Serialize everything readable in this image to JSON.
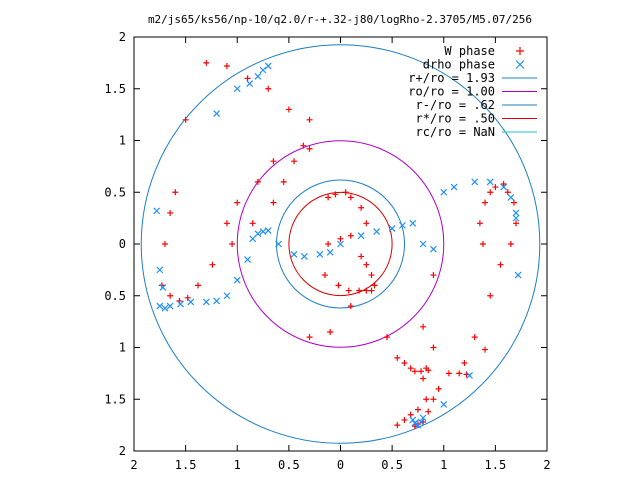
{
  "chart_data": {
    "type": "scatter",
    "title": "m2/js65/ks56/np-10/q2.0/r-+.32-j80/logRho-2.3705/M5.07/256",
    "xlim": [
      -2,
      2
    ],
    "ylim": [
      -2,
      2
    ],
    "x_tick_labels": [
      "2",
      "1.5",
      "1",
      "0.5",
      "0",
      "0.5",
      "1",
      "1.5",
      "2"
    ],
    "y_tick_labels": [
      "2",
      "1.5",
      "1",
      "0.5",
      "0",
      "0.5",
      "1",
      "1.5",
      "2"
    ],
    "x_ticks": [
      -2,
      -1.5,
      -1,
      -0.5,
      0,
      0.5,
      1,
      1.5,
      2
    ],
    "y_ticks": [
      2,
      1.5,
      1,
      0.5,
      0,
      -0.5,
      -1,
      -1.5,
      -2
    ],
    "grid": false,
    "legend_position": "top-right",
    "colors": {
      "w_phase": "#ff0000",
      "drho_phase": "#1e90ff",
      "r_plus": "#1e7fc6",
      "ro": "#b000c8",
      "r_minus": "#1e7fc6",
      "r_star": "#d40000",
      "rc": "#20c0d0"
    },
    "series": [
      {
        "name": "W phase",
        "marker": "+",
        "x": [
          -1.73,
          -1.65,
          -1.56,
          -1.48,
          -1.38,
          -1.24,
          -1.05,
          -0.85,
          -0.65,
          -0.55,
          -0.45,
          -0.36,
          -0.3,
          -0.3,
          -0.5,
          -0.7,
          -0.9,
          -1.1,
          -1.3,
          -1.5,
          -1.6,
          -1.65,
          -1.7,
          -1.1,
          -1.0,
          -0.8,
          -0.65,
          -0.12,
          -0.05,
          0.05,
          0.1,
          0.2,
          0.25,
          0.1,
          0.0,
          -0.12,
          -0.15,
          -0.02,
          0.08,
          0.18,
          0.25,
          0.3,
          0.1,
          -0.1,
          -0.3,
          0.2,
          0.25,
          0.3,
          0.33,
          0.45,
          0.55,
          0.62,
          0.68,
          0.72,
          0.78,
          0.83,
          0.85,
          0.9,
          0.8,
          0.8,
          0.55,
          0.62,
          0.68,
          0.75,
          0.83,
          1.05,
          1.2,
          1.4,
          1.38,
          1.35,
          1.4,
          1.45,
          1.5,
          1.58,
          1.62,
          1.68,
          1.7,
          1.65,
          1.55,
          1.45,
          1.3,
          1.15,
          0.9,
          1.22,
          0.95,
          0.9,
          0.85,
          0.8,
          0.75,
          0.72
        ],
        "y": [
          -0.4,
          -0.5,
          -0.55,
          -0.52,
          -0.4,
          -0.2,
          0.0,
          0.2,
          0.4,
          0.6,
          0.8,
          0.95,
          0.92,
          1.2,
          1.3,
          1.5,
          1.6,
          1.72,
          1.75,
          1.2,
          0.5,
          0.3,
          0.0,
          0.2,
          0.4,
          0.6,
          0.8,
          0.45,
          0.48,
          0.5,
          0.45,
          0.35,
          0.2,
          0.08,
          0.05,
          0.0,
          -0.3,
          -0.4,
          -0.45,
          -0.45,
          -0.45,
          -0.45,
          -0.6,
          -0.85,
          -0.9,
          -0.12,
          -0.2,
          -0.3,
          -0.4,
          -0.9,
          -1.1,
          -1.15,
          -1.2,
          -1.23,
          -1.23,
          -1.2,
          -1.22,
          -0.3,
          -0.8,
          -1.3,
          -1.75,
          -1.7,
          -1.65,
          -1.6,
          -1.5,
          -1.25,
          -1.15,
          -1.02,
          0.0,
          0.2,
          0.4,
          0.5,
          0.55,
          0.58,
          0.5,
          0.4,
          0.2,
          0.0,
          -0.2,
          -0.5,
          -0.9,
          -1.25,
          -1.0,
          -1.26,
          -1.4,
          -1.5,
          -1.62,
          -1.72,
          -1.74,
          -1.76
        ]
      },
      {
        "name": "drho phase",
        "marker": "x",
        "x": [
          -1.75,
          -1.7,
          -1.65,
          -1.55,
          -1.45,
          -1.3,
          -1.2,
          -1.1,
          -1.0,
          -0.9,
          -0.85,
          -0.8,
          -0.75,
          -0.7,
          -0.6,
          -0.45,
          -0.35,
          -0.2,
          -0.1,
          0.0,
          0.2,
          0.35,
          0.5,
          0.6,
          0.7,
          0.8,
          0.9,
          1.0,
          1.1,
          1.3,
          1.45,
          1.58,
          1.65,
          1.7,
          -0.7,
          -0.75,
          -0.8,
          -0.88,
          -1.0,
          -1.2,
          0.7,
          0.72,
          0.75,
          0.78,
          0.8,
          1.0,
          1.25,
          1.7,
          1.72,
          -1.75,
          -1.78,
          -1.72
        ],
        "y": [
          -0.6,
          -0.62,
          -0.6,
          -0.58,
          -0.56,
          -0.56,
          -0.55,
          -0.5,
          -0.35,
          -0.15,
          0.05,
          0.1,
          0.12,
          0.13,
          0.0,
          -0.1,
          -0.12,
          -0.1,
          -0.08,
          0.0,
          0.08,
          0.12,
          0.15,
          0.18,
          0.2,
          0.0,
          -0.05,
          0.5,
          0.55,
          0.6,
          0.6,
          0.55,
          0.45,
          0.3,
          1.72,
          1.68,
          1.62,
          1.55,
          1.5,
          1.26,
          -1.7,
          -1.73,
          -1.75,
          -1.72,
          -1.68,
          -1.55,
          -1.27,
          0.25,
          -0.3,
          -0.25,
          0.32,
          -0.42
        ]
      }
    ],
    "circles": [
      {
        "name": "r+/ro = 1.93",
        "radius": 1.93
      },
      {
        "name": "ro/ro = 1.00",
        "radius": 1.0
      },
      {
        "name": "r-/ro = .62",
        "radius": 0.62
      },
      {
        "name": "r*/ro = .50",
        "radius": 0.5
      },
      {
        "name": "rc/ro = NaN",
        "radius": null
      }
    ]
  }
}
